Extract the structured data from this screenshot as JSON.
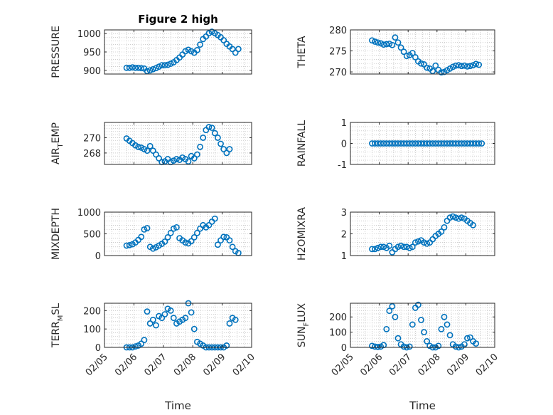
{
  "figure": {
    "title": "Figure 2 high",
    "marker_color": "#0072BD"
  },
  "chart_data": [
    {
      "type": "scatter",
      "ylabel": "PRESSURE",
      "title": "Figure 2 high",
      "xlim": [
        5,
        10
      ],
      "ylim": [
        890,
        1010
      ],
      "yticks": [
        "900",
        "950",
        "1000"
      ],
      "ytick_values": [
        900,
        950,
        1000
      ],
      "grid": "minor",
      "xtick_labels_visible": false,
      "points": [
        [
          5.75,
          907
        ],
        [
          5.85,
          907
        ],
        [
          5.95,
          908
        ],
        [
          6.05,
          907
        ],
        [
          6.15,
          907
        ],
        [
          6.25,
          906
        ],
        [
          6.35,
          905
        ],
        [
          6.45,
          898
        ],
        [
          6.55,
          900
        ],
        [
          6.65,
          903
        ],
        [
          6.75,
          906
        ],
        [
          6.85,
          910
        ],
        [
          6.95,
          914
        ],
        [
          7.05,
          914
        ],
        [
          7.15,
          915
        ],
        [
          7.25,
          918
        ],
        [
          7.35,
          922
        ],
        [
          7.45,
          928
        ],
        [
          7.55,
          935
        ],
        [
          7.65,
          943
        ],
        [
          7.75,
          952
        ],
        [
          7.85,
          956
        ],
        [
          7.95,
          952
        ],
        [
          8.05,
          948
        ],
        [
          8.15,
          955
        ],
        [
          8.25,
          970
        ],
        [
          8.35,
          985
        ],
        [
          8.45,
          992
        ],
        [
          8.55,
          1001
        ],
        [
          8.65,
          1005
        ],
        [
          8.75,
          1001
        ],
        [
          8.85,
          996
        ],
        [
          8.95,
          990
        ],
        [
          9.05,
          982
        ],
        [
          9.15,
          972
        ],
        [
          9.25,
          965
        ],
        [
          9.35,
          958
        ],
        [
          9.45,
          948
        ],
        [
          9.55,
          958
        ]
      ]
    },
    {
      "type": "scatter",
      "ylabel": "THETA",
      "xlim": [
        5,
        10
      ],
      "ylim": [
        269.5,
        280
      ],
      "yticks": [
        "270",
        "275",
        "280"
      ],
      "ytick_values": [
        270,
        275,
        280
      ],
      "grid": "minor",
      "xtick_labels_visible": false,
      "points": [
        [
          5.75,
          277.5
        ],
        [
          5.85,
          277.2
        ],
        [
          5.95,
          277
        ],
        [
          6.05,
          276.8
        ],
        [
          6.15,
          276.5
        ],
        [
          6.25,
          276.6
        ],
        [
          6.35,
          276.7
        ],
        [
          6.45,
          276.4
        ],
        [
          6.55,
          278.2
        ],
        [
          6.65,
          277
        ],
        [
          6.75,
          275.8
        ],
        [
          6.85,
          274.8
        ],
        [
          6.95,
          273.8
        ],
        [
          7.05,
          274
        ],
        [
          7.15,
          274.5
        ],
        [
          7.25,
          273.5
        ],
        [
          7.35,
          272.5
        ],
        [
          7.45,
          272
        ],
        [
          7.55,
          271.8
        ],
        [
          7.65,
          271
        ],
        [
          7.75,
          270.8
        ],
        [
          7.85,
          270.2
        ],
        [
          7.95,
          271.5
        ],
        [
          8.05,
          270.5
        ],
        [
          8.15,
          269.9
        ],
        [
          8.25,
          270
        ],
        [
          8.35,
          270.4
        ],
        [
          8.45,
          270.8
        ],
        [
          8.55,
          271.2
        ],
        [
          8.65,
          271.5
        ],
        [
          8.75,
          271.6
        ],
        [
          8.85,
          271.4
        ],
        [
          8.95,
          271.5
        ],
        [
          9.05,
          271.3
        ],
        [
          9.15,
          271.4
        ],
        [
          9.25,
          271.6
        ],
        [
          9.35,
          271.9
        ],
        [
          9.45,
          271.7
        ]
      ]
    },
    {
      "type": "scatter",
      "ylabel": "AIR_TEMP",
      "xlim": [
        5,
        10
      ],
      "ylim": [
        266.5,
        272
      ],
      "yticks": [
        "268",
        "270"
      ],
      "ytick_values": [
        268,
        270
      ],
      "grid": "minor",
      "xtick_labels_visible": false,
      "points": [
        [
          5.75,
          269.9
        ],
        [
          5.85,
          269.6
        ],
        [
          5.95,
          269.3
        ],
        [
          6.05,
          269
        ],
        [
          6.15,
          268.8
        ],
        [
          6.25,
          268.7
        ],
        [
          6.35,
          268.5
        ],
        [
          6.45,
          268.3
        ],
        [
          6.55,
          268.9
        ],
        [
          6.65,
          268.3
        ],
        [
          6.75,
          267.8
        ],
        [
          6.85,
          267.3
        ],
        [
          6.95,
          266.8
        ],
        [
          7.05,
          266.9
        ],
        [
          7.15,
          267.2
        ],
        [
          7.25,
          266.8
        ],
        [
          7.35,
          267
        ],
        [
          7.45,
          267.2
        ],
        [
          7.55,
          267.1
        ],
        [
          7.65,
          267.4
        ],
        [
          7.75,
          267.2
        ],
        [
          7.85,
          266.9
        ],
        [
          7.95,
          267.6
        ],
        [
          8.05,
          267.3
        ],
        [
          8.15,
          267.8
        ],
        [
          8.25,
          268.8
        ],
        [
          8.35,
          270
        ],
        [
          8.45,
          271
        ],
        [
          8.55,
          271.4
        ],
        [
          8.65,
          271.3
        ],
        [
          8.75,
          270.6
        ],
        [
          8.85,
          270
        ],
        [
          8.95,
          269.2
        ],
        [
          9.05,
          268.5
        ],
        [
          9.15,
          268
        ],
        [
          9.25,
          268.5
        ]
      ]
    },
    {
      "type": "scatter",
      "ylabel": "RAINFALL",
      "xlim": [
        5,
        10
      ],
      "ylim": [
        -1,
        1
      ],
      "yticks": [
        "-1",
        "0",
        "1"
      ],
      "ytick_values": [
        -1,
        0,
        1
      ],
      "grid": "minor",
      "xtick_labels_visible": false,
      "points": [
        [
          5.75,
          0
        ],
        [
          5.85,
          0
        ],
        [
          5.95,
          0
        ],
        [
          6.05,
          0
        ],
        [
          6.15,
          0
        ],
        [
          6.25,
          0
        ],
        [
          6.35,
          0
        ],
        [
          6.45,
          0
        ],
        [
          6.55,
          0
        ],
        [
          6.65,
          0
        ],
        [
          6.75,
          0
        ],
        [
          6.85,
          0
        ],
        [
          6.95,
          0
        ],
        [
          7.05,
          0
        ],
        [
          7.15,
          0
        ],
        [
          7.25,
          0
        ],
        [
          7.35,
          0
        ],
        [
          7.45,
          0
        ],
        [
          7.55,
          0
        ],
        [
          7.65,
          0
        ],
        [
          7.75,
          0
        ],
        [
          7.85,
          0
        ],
        [
          7.95,
          0
        ],
        [
          8.05,
          0
        ],
        [
          8.15,
          0
        ],
        [
          8.25,
          0
        ],
        [
          8.35,
          0
        ],
        [
          8.45,
          0
        ],
        [
          8.55,
          0
        ],
        [
          8.65,
          0
        ],
        [
          8.75,
          0
        ],
        [
          8.85,
          0
        ],
        [
          8.95,
          0
        ],
        [
          9.05,
          0
        ],
        [
          9.15,
          0
        ],
        [
          9.25,
          0
        ],
        [
          9.35,
          0
        ],
        [
          9.45,
          0
        ],
        [
          9.55,
          0
        ]
      ]
    },
    {
      "type": "scatter",
      "ylabel": "MIXDEPTH",
      "xlim": [
        5,
        10
      ],
      "ylim": [
        0,
        1000
      ],
      "yticks": [
        "0",
        "500",
        "1000"
      ],
      "ytick_values": [
        0,
        500,
        1000
      ],
      "grid": "minor",
      "xtick_labels_visible": false,
      "points": [
        [
          5.75,
          230
        ],
        [
          5.85,
          240
        ],
        [
          5.95,
          260
        ],
        [
          6.05,
          300
        ],
        [
          6.15,
          360
        ],
        [
          6.25,
          430
        ],
        [
          6.35,
          600
        ],
        [
          6.45,
          630
        ],
        [
          6.55,
          200
        ],
        [
          6.65,
          160
        ],
        [
          6.75,
          190
        ],
        [
          6.85,
          230
        ],
        [
          6.95,
          270
        ],
        [
          7.05,
          320
        ],
        [
          7.15,
          420
        ],
        [
          7.25,
          520
        ],
        [
          7.35,
          620
        ],
        [
          7.45,
          650
        ],
        [
          7.55,
          400
        ],
        [
          7.65,
          350
        ],
        [
          7.75,
          300
        ],
        [
          7.85,
          280
        ],
        [
          7.95,
          330
        ],
        [
          8.05,
          420
        ],
        [
          8.15,
          520
        ],
        [
          8.25,
          620
        ],
        [
          8.35,
          700
        ],
        [
          8.45,
          650
        ],
        [
          8.55,
          700
        ],
        [
          8.65,
          780
        ],
        [
          8.75,
          850
        ],
        [
          8.85,
          250
        ],
        [
          8.95,
          350
        ],
        [
          9.05,
          430
        ],
        [
          9.15,
          420
        ],
        [
          9.25,
          350
        ],
        [
          9.35,
          200
        ],
        [
          9.45,
          100
        ],
        [
          9.55,
          60
        ]
      ]
    },
    {
      "type": "scatter",
      "ylabel": "H2OMIXRA",
      "xlim": [
        5,
        10
      ],
      "ylim": [
        1,
        3
      ],
      "yticks": [
        "1",
        "2",
        "3"
      ],
      "ytick_values": [
        1,
        2,
        3
      ],
      "grid": "minor",
      "xtick_labels_visible": false,
      "points": [
        [
          5.75,
          1.3
        ],
        [
          5.85,
          1.3
        ],
        [
          5.95,
          1.35
        ],
        [
          6.05,
          1.4
        ],
        [
          6.15,
          1.4
        ],
        [
          6.25,
          1.35
        ],
        [
          6.35,
          1.45
        ],
        [
          6.45,
          1.15
        ],
        [
          6.55,
          1.3
        ],
        [
          6.65,
          1.4
        ],
        [
          6.75,
          1.45
        ],
        [
          6.85,
          1.4
        ],
        [
          6.95,
          1.4
        ],
        [
          7.05,
          1.35
        ],
        [
          7.15,
          1.4
        ],
        [
          7.25,
          1.6
        ],
        [
          7.35,
          1.65
        ],
        [
          7.45,
          1.7
        ],
        [
          7.55,
          1.6
        ],
        [
          7.65,
          1.55
        ],
        [
          7.75,
          1.6
        ],
        [
          7.85,
          1.75
        ],
        [
          7.95,
          1.9
        ],
        [
          8.05,
          2
        ],
        [
          8.15,
          2.1
        ],
        [
          8.25,
          2.3
        ],
        [
          8.35,
          2.6
        ],
        [
          8.45,
          2.75
        ],
        [
          8.55,
          2.8
        ],
        [
          8.65,
          2.75
        ],
        [
          8.75,
          2.7
        ],
        [
          8.85,
          2.75
        ],
        [
          8.95,
          2.7
        ],
        [
          9.05,
          2.6
        ],
        [
          9.15,
          2.5
        ],
        [
          9.25,
          2.4
        ]
      ]
    },
    {
      "type": "scatter",
      "ylabel": "TERR_MSL",
      "xlim": [
        5,
        10
      ],
      "ylim": [
        0,
        240
      ],
      "yticks": [
        "0",
        "100",
        "200"
      ],
      "ytick_values": [
        0,
        100,
        200
      ],
      "grid": "minor",
      "xtick_labels_visible": true,
      "xticks": [
        "02/05",
        "02/06",
        "02/07",
        "02/08",
        "02/09",
        "02/10"
      ],
      "xtick_values": [
        5,
        6,
        7,
        8,
        9,
        10
      ],
      "xlabel": "Time",
      "points": [
        [
          5.75,
          0
        ],
        [
          5.85,
          0
        ],
        [
          5.95,
          0
        ],
        [
          6.05,
          5
        ],
        [
          6.15,
          10
        ],
        [
          6.25,
          20
        ],
        [
          6.35,
          40
        ],
        [
          6.45,
          195
        ],
        [
          6.55,
          130
        ],
        [
          6.65,
          150
        ],
        [
          6.75,
          120
        ],
        [
          6.85,
          170
        ],
        [
          6.95,
          160
        ],
        [
          7.05,
          180
        ],
        [
          7.15,
          210
        ],
        [
          7.25,
          200
        ],
        [
          7.35,
          160
        ],
        [
          7.45,
          130
        ],
        [
          7.55,
          140
        ],
        [
          7.65,
          150
        ],
        [
          7.75,
          160
        ],
        [
          7.85,
          240
        ],
        [
          7.95,
          190
        ],
        [
          8.05,
          100
        ],
        [
          8.15,
          30
        ],
        [
          8.25,
          20
        ],
        [
          8.35,
          10
        ],
        [
          8.45,
          0
        ],
        [
          8.55,
          0
        ],
        [
          8.65,
          0
        ],
        [
          8.75,
          0
        ],
        [
          8.85,
          0
        ],
        [
          8.95,
          0
        ],
        [
          9.05,
          0
        ],
        [
          9.15,
          10
        ],
        [
          9.25,
          130
        ],
        [
          9.35,
          160
        ],
        [
          9.45,
          150
        ]
      ]
    },
    {
      "type": "scatter",
      "ylabel": "SUN_FLUX",
      "xlim": [
        5,
        10
      ],
      "ylim": [
        0,
        290
      ],
      "yticks": [
        "0",
        "100",
        "200"
      ],
      "ytick_values": [
        0,
        100,
        200
      ],
      "grid": "minor",
      "xtick_labels_visible": true,
      "xticks": [
        "02/05",
        "02/06",
        "02/07",
        "02/08",
        "02/09",
        "02/10"
      ],
      "xtick_values": [
        5,
        6,
        7,
        8,
        9,
        10
      ],
      "xlabel": "Time",
      "points": [
        [
          5.75,
          10
        ],
        [
          5.85,
          5
        ],
        [
          5.95,
          3
        ],
        [
          6.05,
          5
        ],
        [
          6.15,
          15
        ],
        [
          6.25,
          120
        ],
        [
          6.35,
          240
        ],
        [
          6.45,
          270
        ],
        [
          6.55,
          200
        ],
        [
          6.65,
          60
        ],
        [
          6.75,
          20
        ],
        [
          6.85,
          5
        ],
        [
          6.95,
          0
        ],
        [
          7.05,
          5
        ],
        [
          7.15,
          150
        ],
        [
          7.25,
          260
        ],
        [
          7.35,
          280
        ],
        [
          7.45,
          180
        ],
        [
          7.55,
          100
        ],
        [
          7.65,
          40
        ],
        [
          7.75,
          10
        ],
        [
          7.85,
          0
        ],
        [
          7.95,
          0
        ],
        [
          8.05,
          10
        ],
        [
          8.15,
          120
        ],
        [
          8.25,
          200
        ],
        [
          8.35,
          150
        ],
        [
          8.45,
          80
        ],
        [
          8.55,
          20
        ],
        [
          8.65,
          5
        ],
        [
          8.75,
          0
        ],
        [
          8.85,
          5
        ],
        [
          8.95,
          20
        ],
        [
          9.05,
          60
        ],
        [
          9.15,
          65
        ],
        [
          9.25,
          40
        ],
        [
          9.35,
          25
        ]
      ]
    }
  ]
}
